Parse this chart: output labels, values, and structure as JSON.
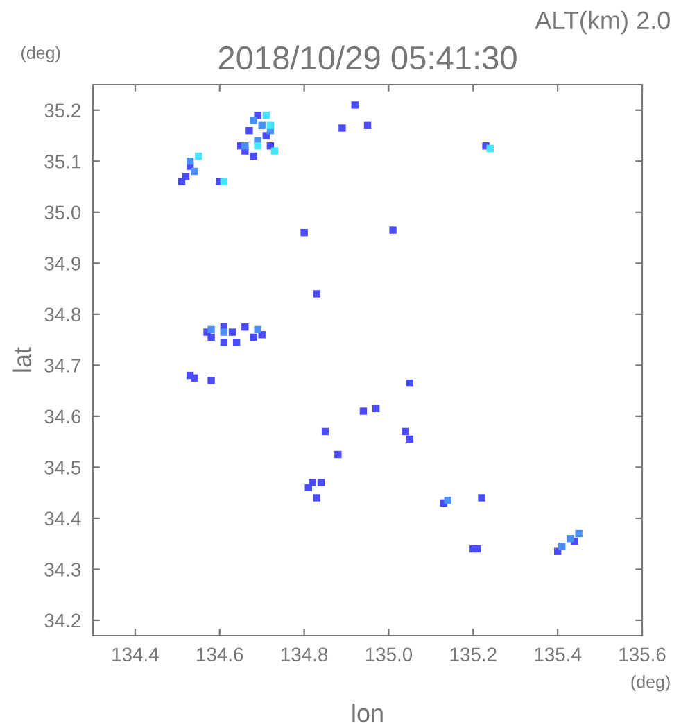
{
  "chart_data": {
    "type": "scatter",
    "title": "2018/10/29 05:41:30",
    "xlabel": "lon",
    "ylabel": "lat",
    "annotations": [
      "ALT(km) 2.0",
      "(deg)",
      "(deg)"
    ],
    "marker": "square",
    "grid": false,
    "xlim": [
      134.3,
      135.6
    ],
    "ylim": [
      34.17,
      35.25
    ],
    "xticks": [
      134.4,
      134.6,
      134.8,
      {
        "value": 135.0,
        "label": "135.0"
      },
      135.2,
      135.4,
      135.6
    ],
    "yticks": [
      34.2,
      34.3,
      34.4,
      34.5,
      34.6,
      34.7,
      34.8,
      34.9,
      {
        "value": 35.0,
        "label": "35.0"
      },
      35.1,
      35.2
    ],
    "series": [
      {
        "color": "#4b4bfb",
        "x": [
          134.69,
          134.67,
          134.71,
          134.65,
          134.66,
          134.68,
          134.72,
          134.52,
          134.51,
          134.53,
          134.6,
          134.92,
          134.89,
          134.95,
          134.8,
          135.01,
          134.83,
          134.57,
          134.58,
          134.61,
          134.63,
          134.66,
          134.68,
          134.7,
          134.61,
          134.64,
          134.53,
          134.54,
          134.58,
          134.85,
          134.88,
          134.84,
          134.82,
          134.81,
          134.83,
          134.94,
          134.97,
          135.04,
          135.05,
          135.05,
          135.13,
          135.22,
          135.23,
          135.2,
          135.21,
          135.4,
          135.44
        ],
        "values": [
          35.19,
          35.16,
          35.15,
          35.13,
          35.12,
          35.11,
          35.13,
          35.07,
          35.06,
          35.09,
          35.06,
          35.21,
          35.165,
          35.17,
          34.96,
          34.965,
          34.84,
          34.765,
          34.755,
          34.775,
          34.765,
          34.775,
          34.755,
          34.76,
          34.745,
          34.745,
          34.68,
          34.675,
          34.67,
          34.57,
          34.525,
          34.47,
          34.47,
          34.46,
          34.44,
          34.61,
          34.615,
          34.57,
          34.555,
          34.665,
          34.43,
          34.44,
          35.13,
          34.34,
          34.34,
          34.335,
          34.355
        ]
      },
      {
        "color": "#4a90f8",
        "x": [
          134.68,
          134.7,
          134.72,
          134.66,
          134.69,
          134.53,
          134.54,
          134.58,
          134.61,
          134.69,
          135.14,
          135.41,
          135.43,
          135.45
        ],
        "values": [
          35.18,
          35.17,
          35.16,
          35.13,
          35.14,
          35.1,
          35.08,
          34.77,
          34.765,
          34.77,
          34.435,
          34.345,
          34.36,
          34.37
        ]
      },
      {
        "color": "#44e5ff",
        "x": [
          134.71,
          134.72,
          134.55,
          134.69,
          134.73,
          134.61,
          135.24
        ],
        "values": [
          35.19,
          35.17,
          35.11,
          35.13,
          35.12,
          35.06,
          35.125
        ]
      }
    ]
  }
}
